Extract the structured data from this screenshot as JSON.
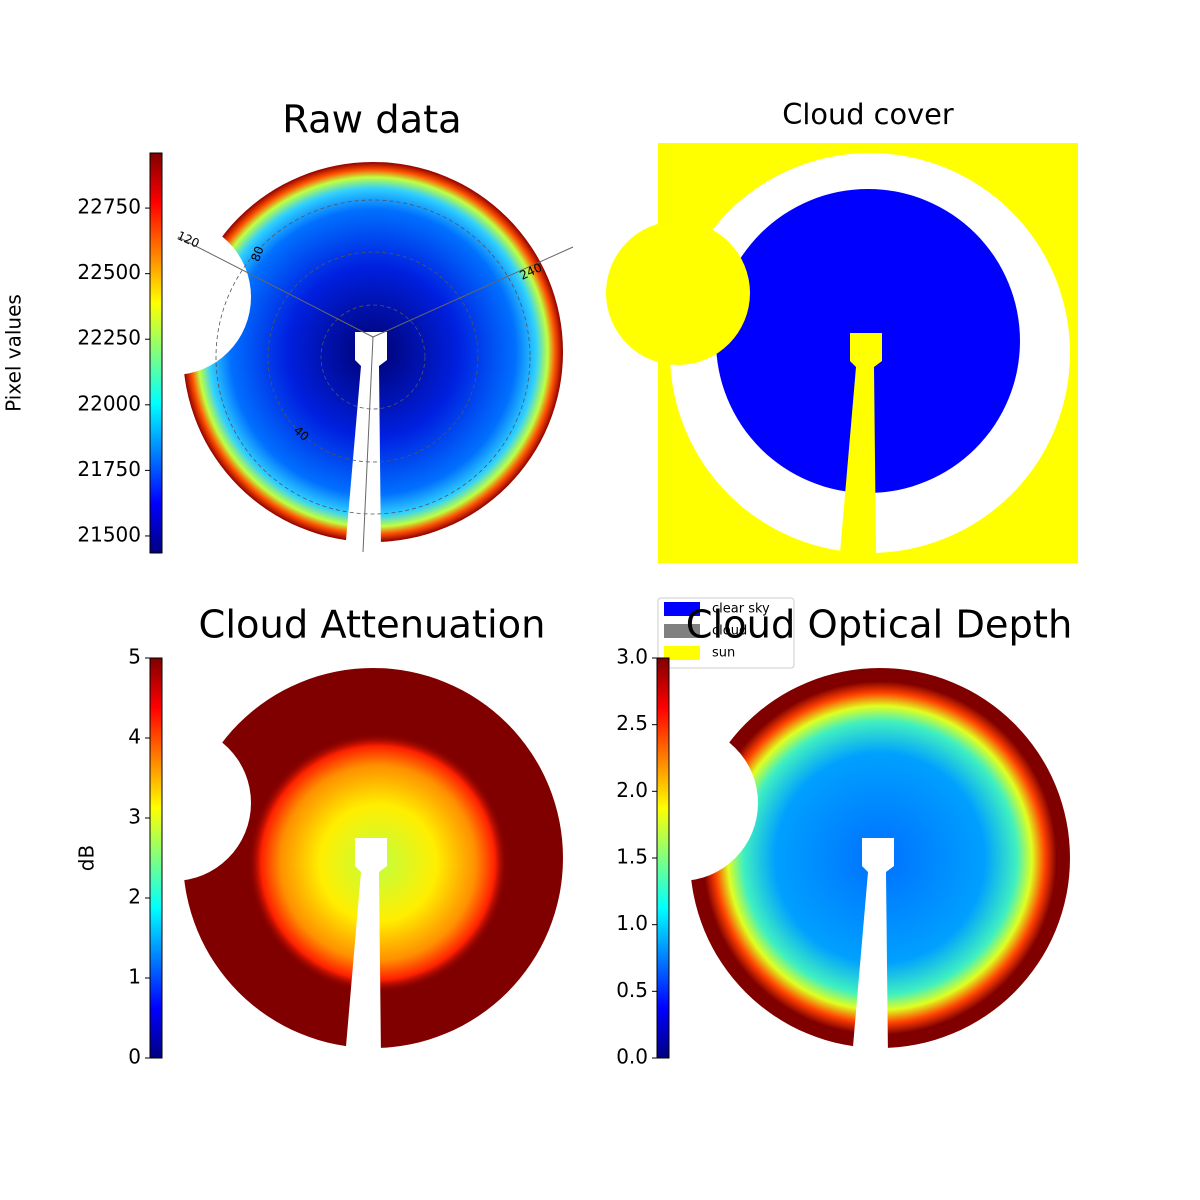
{
  "chart_data": [
    {
      "type": "image",
      "title": "Raw data",
      "colormap": "jet",
      "colorbar_label": "Pixel values",
      "ylim": [
        21435,
        22960
      ],
      "yticks": [
        21500,
        21750,
        22000,
        22250,
        22500,
        22750
      ],
      "annotations": [
        "120",
        "80",
        "240",
        "40"
      ]
    },
    {
      "type": "classification",
      "title": "Cloud cover",
      "series": [
        {
          "name": "clear sky",
          "color": "#0000ff"
        },
        {
          "name": "cloud",
          "color": "#808080"
        },
        {
          "name": "sun",
          "color": "#ffff00"
        }
      ]
    },
    {
      "type": "image",
      "title": "Cloud Attenuation",
      "colormap": "jet",
      "colorbar_label": "dB",
      "ylim": [
        0,
        5
      ],
      "yticks": [
        0,
        1,
        2,
        3,
        4,
        5
      ]
    },
    {
      "type": "image",
      "title": "Cloud Optical Depth",
      "colormap": "jet",
      "ylim": [
        0,
        3
      ],
      "yticks": [
        {
          "value": 0,
          "label": "0.0"
        },
        0.5,
        {
          "value": 1,
          "label": "1.0"
        },
        1.5,
        {
          "value": 2,
          "label": "2.0"
        },
        2.5,
        {
          "value": 3,
          "label": "3.0"
        }
      ]
    }
  ]
}
